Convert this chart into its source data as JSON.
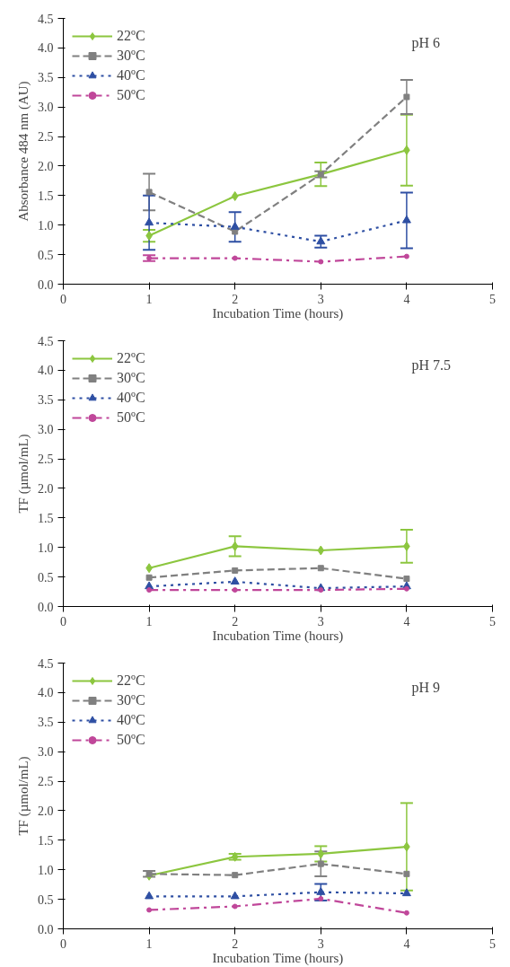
{
  "chart_data": [
    {
      "type": "line",
      "annotations": [
        "pH 6"
      ],
      "xlabel": "Incubation Time (hours)",
      "ylabel": "Absorbance 484 nm (AU)",
      "x": [
        1,
        2,
        3,
        4
      ],
      "xlim": [
        0,
        5
      ],
      "xticks": [
        0,
        1,
        2,
        3,
        4,
        5
      ],
      "ylim": [
        0,
        4.5
      ],
      "yticks": [
        {
          "value": 0,
          "label": "0.0"
        },
        {
          "value": 0.5,
          "label": "0.5"
        },
        {
          "value": 1,
          "label": "1.0"
        },
        {
          "value": 1.5,
          "label": "1.5"
        },
        {
          "value": 2,
          "label": "2.0"
        },
        {
          "value": 2.5,
          "label": "2.5"
        },
        {
          "value": 3,
          "label": "3.0"
        },
        {
          "value": 3.5,
          "label": "3.5"
        },
        {
          "value": 4,
          "label": "4.0"
        },
        {
          "value": 4.5,
          "label": "4.5"
        }
      ],
      "grid": false,
      "legend": "top left",
      "series": [
        {
          "name": "22ºC",
          "color": "#8cc63f",
          "marker": "diamond",
          "line_style": "solid",
          "values": [
            0.82,
            1.49,
            1.86,
            2.27
          ],
          "errors": [
            0.1,
            null,
            0.2,
            0.6
          ]
        },
        {
          "name": "30ºC",
          "color": "#808080",
          "marker": "square",
          "line_style": "dashed",
          "values": [
            1.56,
            0.89,
            1.86,
            3.17
          ],
          "errors": [
            0.31,
            null,
            0.05,
            0.29
          ]
        },
        {
          "name": "40ºC",
          "color": "#2e4fa3",
          "marker": "triangle",
          "line_style": "dotted",
          "values": [
            1.04,
            0.97,
            0.72,
            1.08
          ],
          "errors": [
            0.46,
            0.25,
            0.1,
            0.47
          ]
        },
        {
          "name": "50ºC",
          "color": "#c0479a",
          "marker": "circle",
          "line_style": "dashdot",
          "values": [
            0.44,
            0.44,
            0.38,
            0.47
          ],
          "errors": [
            0.05,
            null,
            null,
            null
          ]
        }
      ]
    },
    {
      "type": "line",
      "annotations": [
        "pH 7.5"
      ],
      "xlabel": "Incubation Time (hours)",
      "ylabel": "TF (µmol/mL)",
      "x": [
        1,
        2,
        3,
        4
      ],
      "xlim": [
        0,
        5
      ],
      "xticks": [
        0,
        1,
        2,
        3,
        4,
        5
      ],
      "ylim": [
        0,
        4.5
      ],
      "yticks": [
        {
          "value": 0,
          "label": "0.0"
        },
        {
          "value": 0.5,
          "label": "0.5"
        },
        {
          "value": 1,
          "label": "1.0"
        },
        {
          "value": 1.5,
          "label": "1.5"
        },
        {
          "value": 2,
          "label": "2.0"
        },
        {
          "value": 2.5,
          "label": "2.5"
        },
        {
          "value": 3,
          "label": "3.0"
        },
        {
          "value": 3.5,
          "label": "3.5"
        },
        {
          "value": 4,
          "label": "4.0"
        },
        {
          "value": 4.5,
          "label": "4.5"
        }
      ],
      "grid": false,
      "legend": "top left",
      "series": [
        {
          "name": "22ºC",
          "color": "#8cc63f",
          "marker": "diamond",
          "line_style": "solid",
          "values": [
            0.65,
            1.02,
            0.95,
            1.02
          ],
          "errors": [
            null,
            0.17,
            null,
            0.28
          ]
        },
        {
          "name": "30ºC",
          "color": "#808080",
          "marker": "square",
          "line_style": "dashed",
          "values": [
            0.49,
            0.61,
            0.65,
            0.47
          ],
          "errors": [
            null,
            null,
            null,
            null
          ]
        },
        {
          "name": "40ºC",
          "color": "#2e4fa3",
          "marker": "triangle",
          "line_style": "dotted",
          "values": [
            0.34,
            0.42,
            0.31,
            0.34
          ],
          "errors": [
            null,
            null,
            null,
            null
          ]
        },
        {
          "name": "50ºC",
          "color": "#c0479a",
          "marker": "circle",
          "line_style": "dashdot",
          "values": [
            0.28,
            0.28,
            0.28,
            0.3
          ],
          "errors": [
            null,
            null,
            null,
            null
          ]
        }
      ]
    },
    {
      "type": "line",
      "annotations": [
        "pH 9"
      ],
      "xlabel": "Incubation Time (hours)",
      "ylabel": "TF (µmol/mL)",
      "x": [
        1,
        2,
        3,
        4
      ],
      "xlim": [
        0,
        5
      ],
      "xticks": [
        0,
        1,
        2,
        3,
        4,
        5
      ],
      "ylim": [
        0,
        4.5
      ],
      "yticks": [
        {
          "value": 0,
          "label": "0.0"
        },
        {
          "value": 0.5,
          "label": "0.5"
        },
        {
          "value": 1,
          "label": "1.0"
        },
        {
          "value": 1.5,
          "label": "1.5"
        },
        {
          "value": 2,
          "label": "2.0"
        },
        {
          "value": 2.5,
          "label": "2.5"
        },
        {
          "value": 3,
          "label": "3.0"
        },
        {
          "value": 3.5,
          "label": "3.5"
        },
        {
          "value": 4,
          "label": "4.0"
        },
        {
          "value": 4.5,
          "label": "4.5"
        }
      ],
      "grid": false,
      "legend": "top left",
      "series": [
        {
          "name": "22ºC",
          "color": "#8cc63f",
          "marker": "diamond",
          "line_style": "solid",
          "values": [
            0.9,
            1.22,
            1.27,
            1.39
          ],
          "errors": [
            null,
            0.05,
            0.13,
            0.74
          ]
        },
        {
          "name": "30ºC",
          "color": "#808080",
          "marker": "square",
          "line_style": "dashed",
          "values": [
            0.93,
            0.91,
            1.1,
            0.93
          ],
          "errors": [
            0.05,
            null,
            0.21,
            null
          ]
        },
        {
          "name": "40ºC",
          "color": "#2e4fa3",
          "marker": "triangle",
          "line_style": "dotted",
          "values": [
            0.55,
            0.55,
            0.62,
            0.6
          ],
          "errors": [
            null,
            null,
            0.14,
            null
          ]
        },
        {
          "name": "50ºC",
          "color": "#c0479a",
          "marker": "circle",
          "line_style": "dashdot",
          "values": [
            0.32,
            0.38,
            0.51,
            0.27
          ],
          "errors": [
            null,
            null,
            null,
            null
          ]
        }
      ]
    }
  ]
}
